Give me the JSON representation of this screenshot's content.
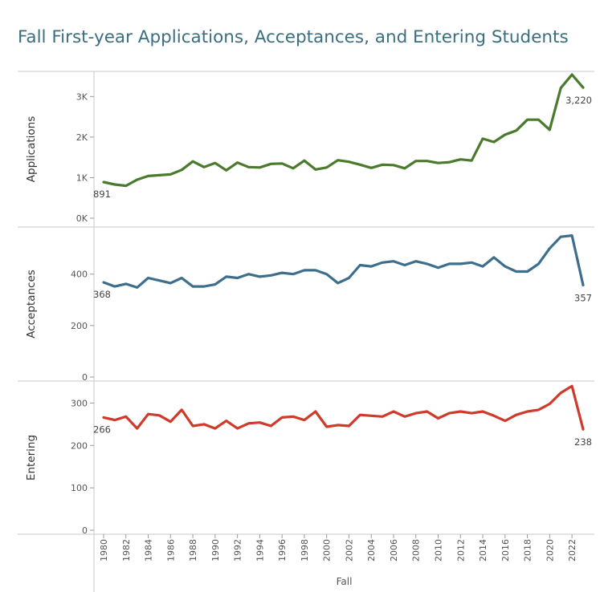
{
  "title": "Fall First-year Applications, Acceptances, and Entering Students",
  "chart_data": {
    "type": "line",
    "title": "Fall First-year Applications, Acceptances, and Entering Students",
    "xlabel": "Fall",
    "x": [
      1980,
      1981,
      1982,
      1983,
      1984,
      1985,
      1986,
      1987,
      1988,
      1989,
      1990,
      1991,
      1992,
      1993,
      1994,
      1995,
      1996,
      1997,
      1998,
      1999,
      2000,
      2001,
      2002,
      2003,
      2004,
      2005,
      2006,
      2007,
      2008,
      2009,
      2010,
      2011,
      2012,
      2013,
      2014,
      2015,
      2016,
      2017,
      2018,
      2019,
      2020,
      2021,
      2022,
      2023
    ],
    "x_ticks": [
      "1980",
      "1982",
      "1984",
      "1986",
      "1988",
      "1990",
      "1992",
      "1994",
      "1996",
      "1998",
      "2000",
      "2002",
      "2004",
      "2006",
      "2008",
      "2010",
      "2012",
      "2014",
      "2016",
      "2018",
      "2020",
      "2022"
    ],
    "grid": false,
    "panels": [
      {
        "name": "Applications",
        "ylabel": "Applications",
        "ylim": [
          0,
          3600
        ],
        "y_ticks": [
          0,
          1000,
          2000,
          3000
        ],
        "y_tick_labels": [
          "0K",
          "1K",
          "2K",
          "3K"
        ],
        "color": "#4a7a2c",
        "first_label": "891",
        "last_label": "3,220",
        "values": [
          891,
          830,
          800,
          950,
          1040,
          1060,
          1080,
          1190,
          1400,
          1260,
          1360,
          1180,
          1370,
          1260,
          1250,
          1340,
          1350,
          1230,
          1420,
          1200,
          1250,
          1430,
          1390,
          1320,
          1240,
          1320,
          1310,
          1230,
          1410,
          1410,
          1360,
          1380,
          1450,
          1420,
          1960,
          1880,
          2060,
          2160,
          2430,
          2430,
          2180,
          3210,
          3540,
          3220
        ]
      },
      {
        "name": "Acceptances",
        "ylabel": "Acceptances",
        "ylim": [
          0,
          580
        ],
        "y_ticks": [
          0,
          200,
          400
        ],
        "y_tick_labels": [
          "0",
          "200",
          "400"
        ],
        "color": "#3d6e8c",
        "first_label": "368",
        "last_label": "357",
        "values": [
          368,
          352,
          362,
          348,
          385,
          375,
          365,
          385,
          352,
          352,
          360,
          390,
          385,
          400,
          390,
          395,
          405,
          400,
          415,
          415,
          400,
          365,
          385,
          435,
          430,
          445,
          450,
          435,
          450,
          440,
          425,
          440,
          440,
          445,
          430,
          465,
          430,
          410,
          410,
          440,
          500,
          545,
          550,
          357
        ]
      },
      {
        "name": "Entering",
        "ylabel": "Entering",
        "ylim": [
          0,
          350
        ],
        "y_ticks": [
          0,
          100,
          200,
          300
        ],
        "y_tick_labels": [
          "0",
          "100",
          "200",
          "300"
        ],
        "color": "#d03a2a",
        "first_label": "266",
        "last_label": "238",
        "values": [
          266,
          260,
          268,
          240,
          274,
          271,
          256,
          284,
          246,
          250,
          240,
          258,
          240,
          252,
          254,
          246,
          266,
          268,
          260,
          280,
          244,
          248,
          246,
          272,
          270,
          268,
          280,
          268,
          276,
          280,
          264,
          276,
          280,
          276,
          280,
          270,
          258,
          272,
          280,
          284,
          298,
          324,
          340,
          238
        ]
      }
    ]
  }
}
